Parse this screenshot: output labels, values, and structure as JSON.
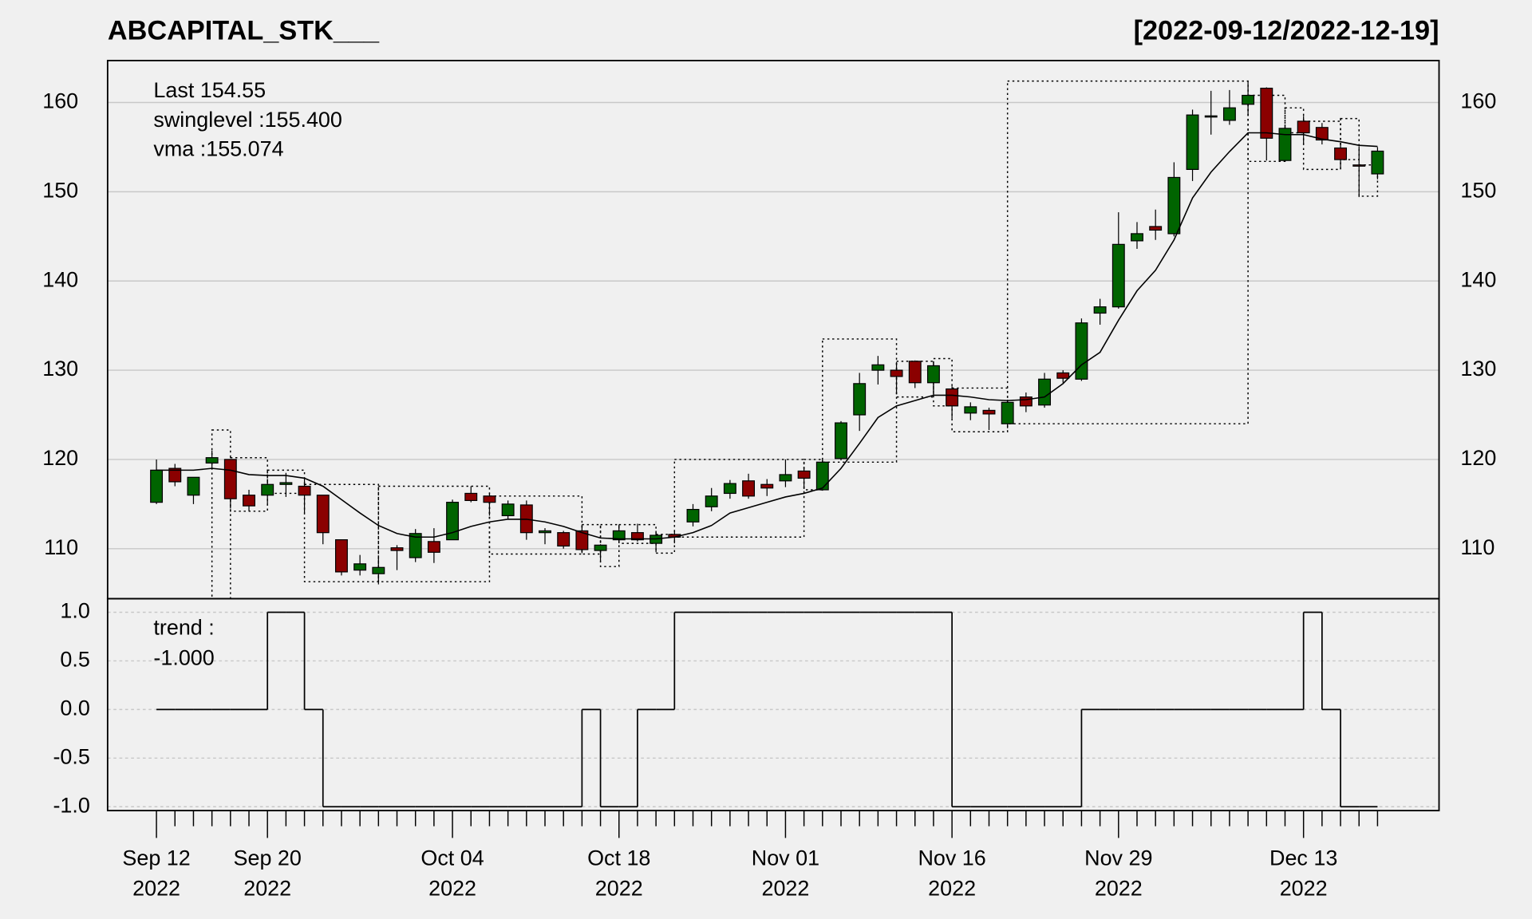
{
  "chart_data": {
    "type": "candlestick",
    "title": "ABCAPITAL_STK___",
    "subtitle": "[2022-09-12/2022-12-19]",
    "categories": [
      [
        "Sep 12",
        "2022"
      ],
      null,
      null,
      null,
      null,
      null,
      [
        "Sep 20",
        "2022"
      ],
      null,
      null,
      null,
      null,
      null,
      null,
      null,
      null,
      null,
      [
        "Oct 04",
        "2022"
      ],
      null,
      null,
      null,
      null,
      null,
      null,
      null,
      null,
      [
        "Oct 18",
        "2022"
      ],
      null,
      null,
      null,
      null,
      null,
      null,
      null,
      null,
      [
        "Nov 01",
        "2022"
      ],
      null,
      null,
      null,
      null,
      null,
      null,
      null,
      null,
      [
        "Nov 16",
        "2022"
      ],
      null,
      null,
      null,
      null,
      null,
      null,
      null,
      null,
      [
        "Nov 29",
        "2022"
      ],
      null,
      null,
      null,
      null,
      null,
      null,
      null,
      null,
      null,
      [
        "Dec 13",
        "2022"
      ],
      null,
      null,
      null,
      null
    ],
    "open": [
      115.2,
      119,
      116,
      119.6,
      120,
      116,
      116,
      117.2,
      117,
      116,
      111,
      107.6,
      107.2,
      110.1,
      109,
      110.8,
      111,
      116.2,
      115.9,
      113.7,
      114.9,
      111.8,
      111.8,
      112,
      109.8,
      111,
      111.8,
      110.6,
      111.6,
      113,
      114.7,
      116.2,
      117.6,
      117.2,
      117.6,
      118.7,
      116.6,
      120.1,
      125,
      130,
      130,
      131,
      128.6,
      127.9,
      125.2,
      125.5,
      124,
      127,
      126.1,
      129.7,
      129,
      136.4,
      137.1,
      144.5,
      146.1,
      145.3,
      152.5,
      158.4,
      158,
      159.8,
      161.6,
      153.5,
      157.9,
      157.2,
      154.9,
      153,
      152
    ],
    "high": [
      120,
      119.5,
      118,
      121,
      120,
      116.6,
      117.8,
      118.5,
      117.8,
      116,
      111,
      109.3,
      109,
      110.4,
      112.2,
      112.3,
      115.5,
      117,
      116.2,
      115.4,
      115.4,
      112.3,
      112,
      112.7,
      110.5,
      112.7,
      112.8,
      112,
      112,
      115,
      116.8,
      117.7,
      118.4,
      117.8,
      120,
      119,
      120,
      124.3,
      129.7,
      131.6,
      130.9,
      131.1,
      131,
      128.2,
      126.4,
      125.8,
      126.7,
      127.5,
      129.7,
      130,
      135.8,
      138,
      147.7,
      146.6,
      148,
      153.3,
      159.2,
      161.3,
      161.4,
      162.4,
      161.7,
      157.4,
      158.5,
      157.7,
      155.4,
      155.1,
      155
    ],
    "low": [
      115,
      117,
      115,
      119,
      114.5,
      114.2,
      115,
      115.8,
      114,
      110.5,
      107,
      107,
      106,
      107.6,
      108.5,
      108.4,
      111,
      115.2,
      113.7,
      113.3,
      111,
      110.5,
      110,
      109.5,
      108.5,
      110.9,
      110.8,
      109.6,
      110.6,
      112.5,
      114.2,
      115.6,
      115.6,
      115.9,
      116.9,
      116.7,
      116.5,
      119.9,
      123.2,
      128.4,
      127.5,
      128,
      127.4,
      124.6,
      124.4,
      123.3,
      123.5,
      125.3,
      125.8,
      128.6,
      128.8,
      135.1,
      136.9,
      143.6,
      144.6,
      145,
      151.2,
      156.4,
      157.5,
      158.6,
      153.5,
      153.4,
      155.3,
      155.3,
      152.5,
      149.4,
      151.4
    ],
    "close": [
      118.8,
      117.5,
      118,
      120.2,
      115.6,
      114.8,
      117.2,
      117.4,
      116,
      111.8,
      107.4,
      108.3,
      107.9,
      109.8,
      111.7,
      109.6,
      115.2,
      115.4,
      115.2,
      115,
      111.8,
      112,
      110.3,
      109.9,
      110.4,
      112,
      111,
      111.5,
      111.3,
      114.4,
      115.9,
      117.3,
      115.9,
      116.8,
      118.3,
      117.9,
      119.7,
      124.1,
      128.5,
      130.6,
      129.3,
      128.6,
      130.5,
      126,
      125.9,
      125.1,
      126.4,
      126,
      129,
      129.1,
      135.3,
      137.1,
      144.1,
      145.3,
      145.7,
      151.6,
      158.6,
      158.5,
      159.4,
      160.8,
      156,
      157.1,
      156.6,
      155.8,
      153.6,
      152.9,
      154.55
    ],
    "up_color": "#006400",
    "down_color": "#8b0000",
    "ylim": [
      104.4,
      164.7
    ],
    "yticks": [
      110,
      120,
      130,
      140,
      150,
      160
    ],
    "grid": true,
    "annotations": [
      "Last 154.55",
      "swinglevel :155.400",
      "vma :155.074"
    ],
    "annotation_colors": [
      "#006400",
      "#000000",
      "#000000"
    ],
    "vma": {
      "color": "#000000",
      "values": [
        118.8,
        118.8,
        118.8,
        119,
        118.8,
        118.3,
        118.2,
        118.2,
        117.9,
        117,
        115.5,
        114,
        112.6,
        111.7,
        111.3,
        111.3,
        111.8,
        112.5,
        113,
        113.3,
        113.3,
        113,
        112.5,
        111.8,
        111.2,
        111.1,
        111.1,
        111.1,
        111.3,
        111.8,
        112.6,
        114,
        114.6,
        115.2,
        115.8,
        116.2,
        116.8,
        119,
        121.8,
        124.7,
        126,
        126.6,
        127.2,
        127.2,
        127,
        126.7,
        126.6,
        126.7,
        127,
        128.5,
        130.6,
        132,
        135.6,
        138.9,
        141.2,
        144.6,
        149.3,
        152.2,
        154.5,
        156.6,
        156.6,
        156.4,
        156.4,
        155.9,
        155.6,
        155.2,
        155.074
      ]
    },
    "swinglevels": [
      {
        "start": 3,
        "end": 4,
        "low": 104,
        "high": 123.3
      },
      {
        "start": 4,
        "end": 6,
        "low": 114.2,
        "high": 120.2
      },
      {
        "start": 6,
        "end": 8,
        "low": 116.2,
        "high": 118.8
      },
      {
        "start": 8,
        "end": 12,
        "low": 106.3,
        "high": 117.2
      },
      {
        "start": 12,
        "end": 18,
        "low": 106.3,
        "high": 117
      },
      {
        "start": 18,
        "end": 23,
        "low": 109.4,
        "high": 115.9
      },
      {
        "start": 23,
        "end": 24,
        "low": 109.4,
        "high": 112.7
      },
      {
        "start": 24,
        "end": 25,
        "low": 108,
        "high": 112.7
      },
      {
        "start": 25,
        "end": 27,
        "low": 110.6,
        "high": 112.7
      },
      {
        "start": 27,
        "end": 28,
        "low": 109.5,
        "high": 111.6
      },
      {
        "start": 28,
        "end": 35,
        "low": 111.3,
        "high": 120
      },
      {
        "start": 35,
        "end": 36,
        "low": 116.6,
        "high": 120
      },
      {
        "start": 36,
        "end": 40,
        "low": 119.7,
        "high": 133.5
      },
      {
        "start": 40,
        "end": 42,
        "low": 127,
        "high": 131
      },
      {
        "start": 42,
        "end": 43,
        "low": 126,
        "high": 131.3
      },
      {
        "start": 43,
        "end": 46,
        "low": 123.1,
        "high": 128
      },
      {
        "start": 46,
        "end": 59,
        "low": 124,
        "high": 162.4
      },
      {
        "start": 59,
        "end": 61,
        "low": 153.4,
        "high": 160.8
      },
      {
        "start": 61,
        "end": 62,
        "low": 156.6,
        "high": 159.4
      },
      {
        "start": 62,
        "end": 64,
        "low": 152.5,
        "high": 157.9
      },
      {
        "start": 64,
        "end": 65,
        "low": 153.6,
        "high": 158.2
      },
      {
        "start": 65,
        "end": 66,
        "low": 149.5,
        "high": 153
      }
    ],
    "trend": {
      "labels": [
        "trend :",
        "-1.000"
      ],
      "values": [
        0,
        0,
        0,
        0,
        0,
        0,
        1,
        1,
        0,
        -1,
        -1,
        -1,
        -1,
        -1,
        -1,
        -1,
        -1,
        -1,
        -1,
        -1,
        -1,
        -1,
        -1,
        0,
        -1,
        -1,
        0,
        0,
        1,
        1,
        1,
        1,
        1,
        1,
        1,
        1,
        1,
        1,
        1,
        1,
        1,
        1,
        1,
        -1,
        -1,
        -1,
        -1,
        -1,
        -1,
        -1,
        0,
        0,
        0,
        0,
        0,
        0,
        0,
        0,
        0,
        0,
        0,
        0,
        1,
        0,
        -1,
        -1,
        -1
      ],
      "ylim": [
        -1.04,
        1.14
      ],
      "yticks": [
        {
          "value": 1,
          "label": "1.0"
        },
        0.5,
        {
          "value": 0,
          "label": "0.0"
        },
        -0.5,
        {
          "value": -1,
          "label": "-1.0"
        }
      ]
    }
  }
}
